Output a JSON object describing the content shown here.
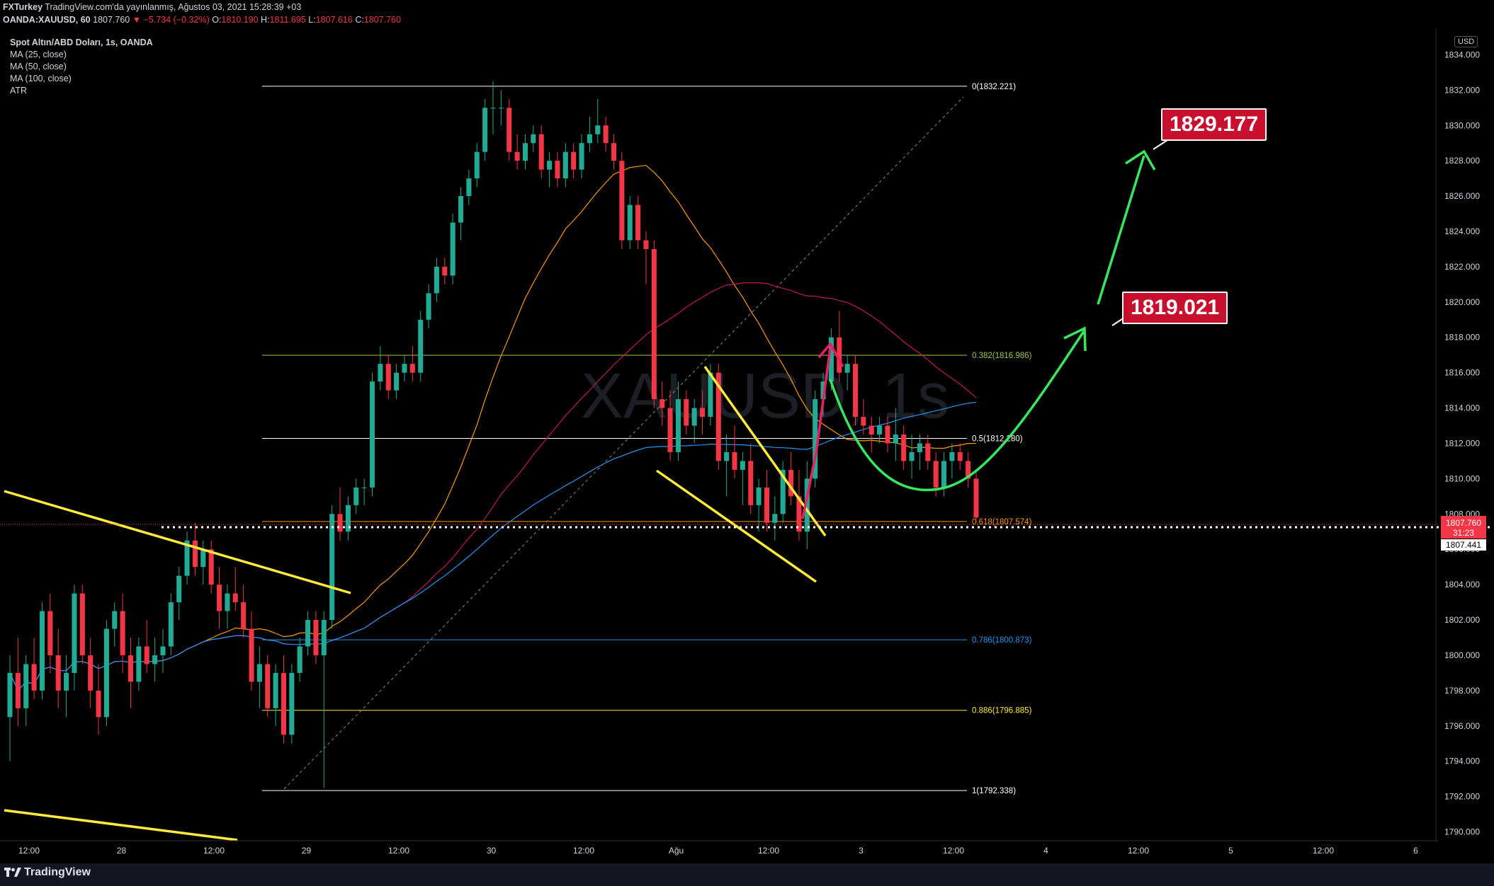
{
  "header": {
    "line1_author": "FXTurkey",
    "line1_rest": " TradingView.com'da yayınlanmış, Ağustos 03, 2021 15:28:39 +03",
    "symbol": "OANDA:XAUUSD, 60",
    "last": "1807.760",
    "change_arrow": "▼",
    "change": "−5.734 (−0.32%)",
    "o_label": "O:",
    "o": "1810.190",
    "h_label": "H:",
    "h": "1811.695",
    "l_label": "L:",
    "l": "1807.616",
    "c_label": "C:",
    "c": "1807.760"
  },
  "legend": {
    "title": "Spot Altın/ABD Doları, 1s, OANDA",
    "ma25": "MA (25, close)",
    "ma50": "MA (50, close)",
    "ma100": "MA (100, close)",
    "atr": "ATR"
  },
  "axis": {
    "currency": "USD",
    "price_badge": "1807.760",
    "countdown": "31:23",
    "ma_badge": "1807.441"
  },
  "callouts": {
    "target1": "1819.021",
    "target2": "1829.177"
  },
  "footer": {
    "brand": "TradingView"
  },
  "colors": {
    "up": "#22ab94",
    "down": "#f23645",
    "ma25": "#ff9800",
    "ma50": "#c2185b",
    "ma100": "#2196f3",
    "trendline": "#ffeb3b",
    "forecast": "#39e75f",
    "callout": "#c8102e"
  },
  "chart_data": {
    "type": "candlestick",
    "symbol": "OANDA:XAUUSD",
    "timeframe": "60",
    "ylim": [
      1789.5,
      1835.5
    ],
    "y_ticks": [
      1834,
      1832,
      1830,
      1828,
      1826,
      1824,
      1822,
      1820,
      1818,
      1816,
      1814,
      1812,
      1810,
      1808,
      1806,
      1804,
      1802,
      1800,
      1798,
      1796,
      1794,
      1792,
      1790
    ],
    "x_ticks": [
      "12:00",
      "28",
      "12:00",
      "29",
      "12:00",
      "30",
      "12:00",
      "Ağu",
      "12:00",
      "3",
      "12:00",
      "4",
      "12:00",
      "5",
      "12:00",
      "6"
    ],
    "fib_levels": [
      {
        "label": "0(1832.221)",
        "price": 1832.221
      },
      {
        "label": "0.382(1816.986)",
        "price": 1816.986
      },
      {
        "label": "0.5(1812.280)",
        "price": 1812.28
      },
      {
        "label": "0.618(1807.574)",
        "price": 1807.574
      },
      {
        "label": "0.786(1800.873)",
        "price": 1800.873
      },
      {
        "label": "0.886(1796.885)",
        "price": 1796.885
      },
      {
        "label": "1(1792.338)",
        "price": 1792.338
      }
    ],
    "ohlc": [
      [
        1796.5,
        1800.0,
        1794.0,
        1799.0
      ],
      [
        1799.0,
        1801.0,
        1796.0,
        1797.0
      ],
      [
        1797.0,
        1800.0,
        1796.0,
        1799.5
      ],
      [
        1799.5,
        1801.0,
        1797.5,
        1798.0
      ],
      [
        1798.0,
        1803.0,
        1797.5,
        1802.5
      ],
      [
        1802.5,
        1803.5,
        1799.0,
        1800.0
      ],
      [
        1800.0,
        1801.5,
        1797.0,
        1798.0
      ],
      [
        1798.0,
        1800.0,
        1796.5,
        1799.0
      ],
      [
        1799.0,
        1804.0,
        1798.0,
        1803.5
      ],
      [
        1803.5,
        1804.0,
        1799.5,
        1800.0
      ],
      [
        1800.0,
        1801.0,
        1797.0,
        1798.0
      ],
      [
        1798.0,
        1799.5,
        1795.5,
        1796.5
      ],
      [
        1796.5,
        1802.0,
        1796.0,
        1801.5
      ],
      [
        1801.5,
        1803.0,
        1800.5,
        1802.5
      ],
      [
        1802.5,
        1803.5,
        1799.0,
        1800.0
      ],
      [
        1800.0,
        1801.0,
        1797.0,
        1798.5
      ],
      [
        1798.5,
        1801.0,
        1798.0,
        1800.5
      ],
      [
        1800.5,
        1802.0,
        1799.0,
        1799.5
      ],
      [
        1799.5,
        1801.0,
        1798.5,
        1800.0
      ],
      [
        1800.0,
        1801.5,
        1799.0,
        1800.5
      ],
      [
        1800.5,
        1803.5,
        1800.0,
        1803.0
      ],
      [
        1803.0,
        1805.0,
        1802.0,
        1804.5
      ],
      [
        1804.5,
        1807.0,
        1804.0,
        1806.5
      ],
      [
        1806.5,
        1807.5,
        1804.5,
        1805.0
      ],
      [
        1805.0,
        1806.5,
        1804.0,
        1806.0
      ],
      [
        1806.0,
        1806.5,
        1803.5,
        1804.0
      ],
      [
        1804.0,
        1805.0,
        1801.5,
        1802.5
      ],
      [
        1802.5,
        1804.0,
        1801.5,
        1803.5
      ],
      [
        1803.5,
        1805.0,
        1802.5,
        1803.0
      ],
      [
        1803.0,
        1804.0,
        1801.0,
        1801.5
      ],
      [
        1801.5,
        1802.5,
        1798.0,
        1798.5
      ],
      [
        1798.5,
        1800.5,
        1797.0,
        1799.5
      ],
      [
        1799.5,
        1800.0,
        1796.5,
        1797.0
      ],
      [
        1797.0,
        1799.5,
        1796.0,
        1799.0
      ],
      [
        1799.0,
        1800.0,
        1795.0,
        1795.5
      ],
      [
        1795.5,
        1799.5,
        1795.0,
        1799.0
      ],
      [
        1799.0,
        1801.0,
        1798.5,
        1800.5
      ],
      [
        1800.5,
        1802.5,
        1800.0,
        1802.0
      ],
      [
        1802.0,
        1802.5,
        1799.5,
        1800.0
      ],
      [
        1800.0,
        1802.5,
        1792.5,
        1802.0
      ],
      [
        1802.0,
        1808.5,
        1801.5,
        1808.0
      ],
      [
        1808.0,
        1809.5,
        1806.5,
        1807.0
      ],
      [
        1807.0,
        1809.0,
        1806.5,
        1808.5
      ],
      [
        1808.5,
        1810.0,
        1808.0,
        1809.5
      ],
      [
        1809.5,
        1810.0,
        1808.5,
        1809.5
      ],
      [
        1809.5,
        1816.0,
        1809.0,
        1815.5
      ],
      [
        1815.5,
        1817.5,
        1815.0,
        1816.5
      ],
      [
        1816.5,
        1817.0,
        1814.5,
        1815.0
      ],
      [
        1815.0,
        1816.5,
        1814.5,
        1816.0
      ],
      [
        1816.0,
        1817.0,
        1815.5,
        1816.5
      ],
      [
        1816.5,
        1817.5,
        1815.5,
        1816.0
      ],
      [
        1816.0,
        1819.5,
        1815.5,
        1819.0
      ],
      [
        1819.0,
        1821.0,
        1818.5,
        1820.5
      ],
      [
        1820.5,
        1822.5,
        1820.0,
        1822.0
      ],
      [
        1822.0,
        1822.5,
        1821.0,
        1821.5
      ],
      [
        1821.5,
        1825.0,
        1821.0,
        1824.5
      ],
      [
        1824.5,
        1826.5,
        1823.5,
        1826.0
      ],
      [
        1826.0,
        1827.5,
        1825.5,
        1827.0
      ],
      [
        1827.0,
        1829.0,
        1826.5,
        1828.5
      ],
      [
        1828.5,
        1831.5,
        1828.0,
        1831.0
      ],
      [
        1831.0,
        1832.5,
        1829.5,
        1831.0
      ],
      [
        1831.0,
        1832.0,
        1830.0,
        1831.0
      ],
      [
        1831.0,
        1831.5,
        1828.0,
        1828.5
      ],
      [
        1828.5,
        1829.5,
        1827.5,
        1828.0
      ],
      [
        1828.0,
        1829.5,
        1827.5,
        1829.0
      ],
      [
        1829.0,
        1830.0,
        1828.5,
        1829.5
      ],
      [
        1829.5,
        1830.0,
        1827.0,
        1827.5
      ],
      [
        1827.5,
        1828.5,
        1826.5,
        1828.0
      ],
      [
        1828.0,
        1828.5,
        1826.5,
        1827.0
      ],
      [
        1827.0,
        1829.0,
        1826.5,
        1828.5
      ],
      [
        1828.5,
        1829.0,
        1827.0,
        1827.5
      ],
      [
        1827.5,
        1829.5,
        1827.0,
        1829.0
      ],
      [
        1829.0,
        1830.5,
        1828.5,
        1829.5
      ],
      [
        1829.5,
        1831.5,
        1829.0,
        1830.0
      ],
      [
        1830.0,
        1830.5,
        1828.5,
        1829.0
      ],
      [
        1829.0,
        1829.5,
        1827.5,
        1828.0
      ],
      [
        1828.0,
        1828.5,
        1823.0,
        1823.5
      ],
      [
        1823.5,
        1826.0,
        1823.0,
        1825.5
      ],
      [
        1825.5,
        1826.0,
        1823.0,
        1823.5
      ],
      [
        1823.5,
        1824.0,
        1821.0,
        1823.0
      ],
      [
        1823.0,
        1823.5,
        1814.0,
        1814.5
      ],
      [
        1814.5,
        1815.5,
        1813.0,
        1814.0
      ],
      [
        1814.0,
        1815.0,
        1811.0,
        1811.5
      ],
      [
        1811.5,
        1815.5,
        1811.0,
        1814.5
      ],
      [
        1814.5,
        1815.0,
        1812.5,
        1813.0
      ],
      [
        1813.0,
        1814.5,
        1812.0,
        1814.0
      ],
      [
        1814.0,
        1815.0,
        1812.5,
        1813.5
      ],
      [
        1813.5,
        1816.5,
        1813.0,
        1816.0
      ],
      [
        1816.0,
        1816.5,
        1810.5,
        1811.0
      ],
      [
        1811.0,
        1812.5,
        1809.0,
        1811.5
      ],
      [
        1811.5,
        1813.0,
        1810.0,
        1810.5
      ],
      [
        1810.5,
        1811.5,
        1808.5,
        1811.0
      ],
      [
        1811.0,
        1812.0,
        1808.0,
        1808.5
      ],
      [
        1808.5,
        1810.0,
        1807.0,
        1809.5
      ],
      [
        1809.5,
        1810.5,
        1807.0,
        1807.5
      ],
      [
        1807.5,
        1809.0,
        1806.5,
        1808.0
      ],
      [
        1808.0,
        1811.0,
        1807.5,
        1810.5
      ],
      [
        1810.5,
        1811.5,
        1808.5,
        1809.0
      ],
      [
        1809.0,
        1810.5,
        1806.5,
        1807.0
      ],
      [
        1807.0,
        1811.0,
        1806.0,
        1810.0
      ],
      [
        1810.0,
        1815.0,
        1809.5,
        1814.5
      ],
      [
        1814.5,
        1816.0,
        1813.5,
        1815.5
      ],
      [
        1815.5,
        1818.5,
        1815.0,
        1818.0
      ],
      [
        1818.0,
        1819.5,
        1815.5,
        1816.0
      ],
      [
        1816.0,
        1817.0,
        1815.0,
        1816.5
      ],
      [
        1816.5,
        1817.0,
        1813.0,
        1813.5
      ],
      [
        1813.5,
        1814.5,
        1812.5,
        1813.0
      ],
      [
        1813.0,
        1813.5,
        1811.5,
        1812.5
      ],
      [
        1812.5,
        1813.5,
        1812.0,
        1813.0
      ],
      [
        1813.0,
        1813.5,
        1811.5,
        1812.0
      ],
      [
        1812.0,
        1814.0,
        1811.0,
        1812.5
      ],
      [
        1812.5,
        1813.0,
        1810.5,
        1811.0
      ],
      [
        1811.0,
        1812.5,
        1810.0,
        1811.5
      ],
      [
        1811.5,
        1812.5,
        1810.5,
        1812.0
      ],
      [
        1812.0,
        1812.5,
        1810.5,
        1811.0
      ],
      [
        1811.0,
        1811.5,
        1809.0,
        1809.5
      ],
      [
        1809.5,
        1811.5,
        1809.0,
        1811.0
      ],
      [
        1811.0,
        1812.0,
        1810.0,
        1811.5
      ],
      [
        1811.5,
        1812.0,
        1810.5,
        1811.0
      ],
      [
        1811.0,
        1811.5,
        1809.5,
        1810.0
      ],
      [
        1810.0,
        1810.5,
        1807.5,
        1807.8
      ]
    ]
  }
}
